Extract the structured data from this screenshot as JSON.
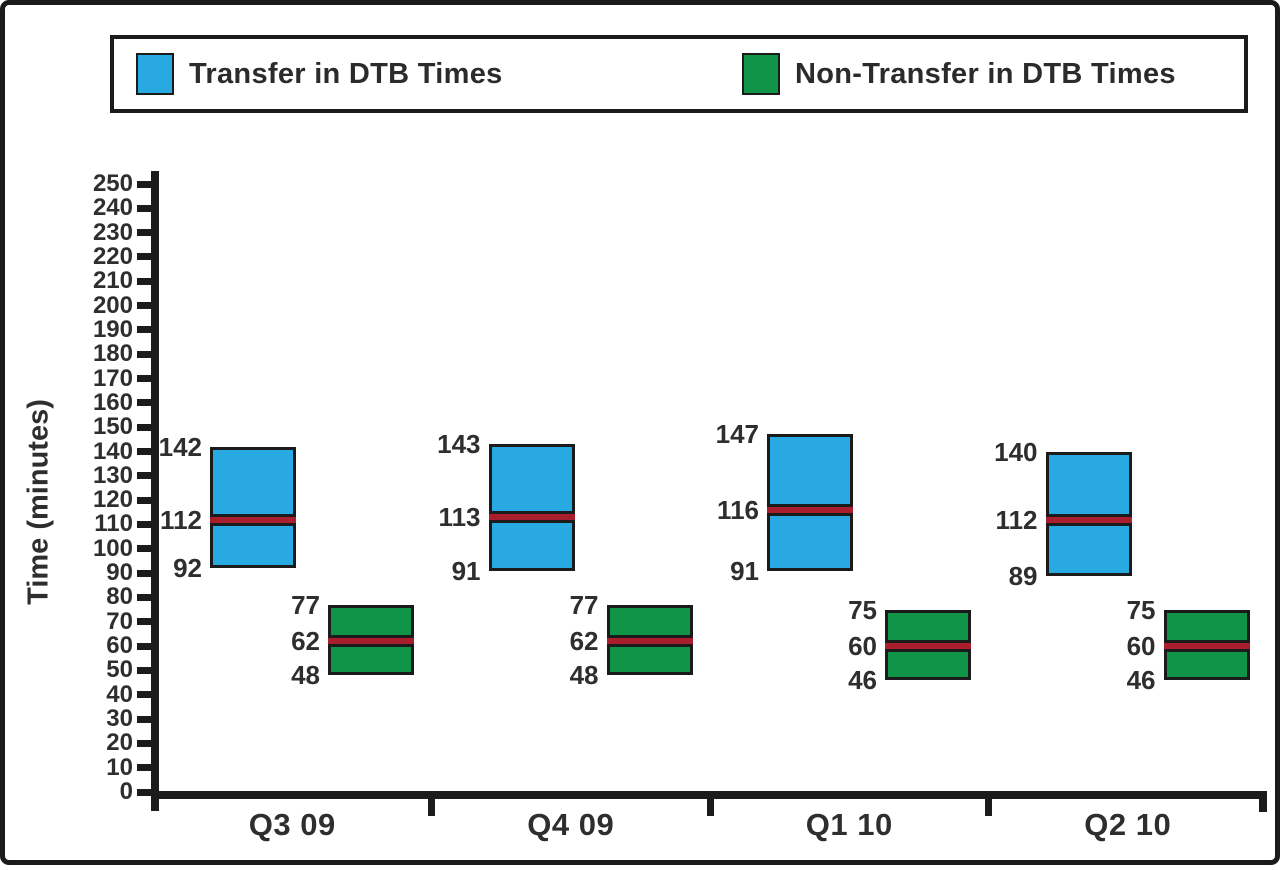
{
  "legend": {
    "items": [
      {
        "label": "Transfer in DTB Times",
        "color": "#29A9E1"
      },
      {
        "label": "Non-Transfer in DTB Times",
        "color": "#0F9447"
      }
    ]
  },
  "chart_data": {
    "type": "box",
    "title": "",
    "xlabel": "",
    "ylabel": "Time (minutes)",
    "ylim": [
      0,
      250
    ],
    "ytick_step": 10,
    "grid": false,
    "legend_position": "top",
    "median_color": "#A81E2D",
    "categories": [
      "Q3 09",
      "Q4 09",
      "Q1 10",
      "Q2 10"
    ],
    "series": [
      {
        "name": "Transfer in DTB Times",
        "color": "#29A9E1",
        "boxes": [
          {
            "high": 142,
            "median": 112,
            "low": 92
          },
          {
            "high": 143,
            "median": 113,
            "low": 91
          },
          {
            "high": 147,
            "median": 116,
            "low": 91
          },
          {
            "high": 140,
            "median": 112,
            "low": 89
          }
        ]
      },
      {
        "name": "Non-Transfer in DTB Times",
        "color": "#0F9447",
        "boxes": [
          {
            "high": 77,
            "median": 62,
            "low": 48
          },
          {
            "high": 77,
            "median": 62,
            "low": 48
          },
          {
            "high": 75,
            "median": 60,
            "low": 46
          },
          {
            "high": 75,
            "median": 60,
            "low": 46
          }
        ]
      }
    ]
  }
}
